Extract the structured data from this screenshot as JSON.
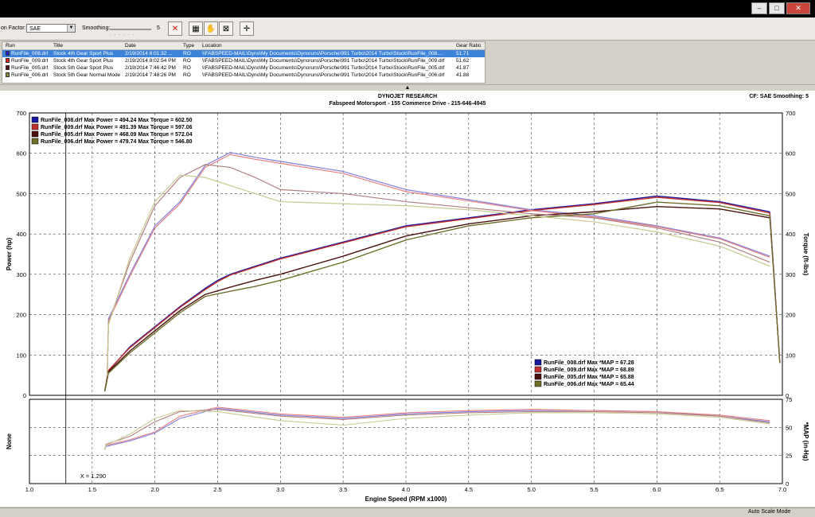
{
  "toolbar": {
    "factor_label": "on Factor:",
    "factor_value": "SAE",
    "smoothing_label": "Smoothing:",
    "smoothing_value": "5"
  },
  "table": {
    "columns": [
      "Run",
      "Title",
      "Date",
      "Type",
      "Location",
      "Gear Ratio"
    ],
    "rows": [
      {
        "run": "RunFile_008.drf",
        "title": "Stock 4th Gear Sport Plus",
        "date": "2/19/2014 8:01:32 ...",
        "type": "RO",
        "location": "\\\\FABSPEED-MAIL\\Dyno\\My Documents\\Dynoruns\\Porsche\\991 Turbo\\2014 Turbo\\Stock\\RunFile_008....",
        "gear": "51.71",
        "color": "#2020e0"
      },
      {
        "run": "RunFile_009.drf",
        "title": "Stock 4th Gear Sport Plus",
        "date": "2/19/2014 8:02:54 PM",
        "type": "RO",
        "location": "\\\\FABSPEED-MAIL\\Dyno\\My Documents\\Dynoruns\\Porsche\\991 Turbo\\2014 Turbo\\Stock\\RunFile_009.drf",
        "gear": "51.62",
        "color": "#e02020"
      },
      {
        "run": "RunFile_005.drf",
        "title": "Stock 5th Gear Sport Plus",
        "date": "2/19/2014 7:46:42 PM",
        "type": "RO",
        "location": "\\\\FABSPEED-MAIL\\Dyno\\My Documents\\Dynoruns\\Porsche\\991 Turbo\\2014 Turbo\\Stock\\RunFile_005.drf",
        "gear": "41.87",
        "color": "#5a1010"
      },
      {
        "run": "RunFile_006.drf",
        "title": "Stock 5th Gear Normal Mode",
        "date": "2/19/2014 7:48:26 PM",
        "type": "RO",
        "location": "\\\\FABSPEED-MAIL\\Dyno\\My Documents\\Dynoruns\\Porsche\\991 Turbo\\2014 Turbo\\Stock\\RunFile_006.drf",
        "gear": "41.88",
        "color": "#8a8a40"
      }
    ]
  },
  "splitter_glyph": "▲",
  "status": {
    "mode": "Auto Scale Mode"
  },
  "chart_data": {
    "type": "line",
    "header": "DYNOJET RESEARCH",
    "subtitle": "Fabspeed Motorsport - 155 Commerce Drive - 215-646-4945",
    "info_right": "CF: SAE  Smoothing: 5",
    "xlabel": "Engine Speed (RPM x1000)",
    "ylabel_left": "Power (hp)",
    "ylabel_right": "Torque (ft-lbs)",
    "ylabel_lower_left": "None",
    "ylabel_lower_right": "*MAP (in-Hg)",
    "xlim": [
      1.0,
      7.0
    ],
    "x_ticks": [
      "1.0",
      "1.5",
      "2.0",
      "2.5",
      "3.0",
      "3.5",
      "4.0",
      "4.5",
      "5.0",
      "5.5",
      "6.0",
      "6.5",
      "7.0"
    ],
    "ylim": [
      0,
      700
    ],
    "y_ticks": [
      "0",
      "100",
      "200",
      "300",
      "400",
      "500",
      "600",
      "700"
    ],
    "lower_ylim": [
      0,
      75
    ],
    "lower_y_ticks": [
      "0",
      "25",
      "50",
      "75"
    ],
    "cursor_label": "X = 1.290",
    "cursor_x": 1.29,
    "grid": true,
    "legend_top": [
      "RunFile_008.drf Max Power = 494.24 Max Torque = 602.50",
      "RunFile_009.drf Max Power = 491.39 Max Torque = 597.06",
      "RunFile_005.drf Max Power = 468.09 Max Torque = 572.04",
      "RunFile_006.drf Max Power = 479.74 Max Torque = 546.80"
    ],
    "legend_map": [
      "RunFile_008.drf Max *MAP = 67.28",
      "RunFile_009.drf Max *MAP = 68.89",
      "RunFile_005.drf Max *MAP = 65.88",
      "RunFile_006.drf Max *MAP = 65.44"
    ],
    "series": [
      {
        "name": "RunFile_008.drf",
        "color": "#1a1aa0",
        "torque_color": "#8080e0",
        "x": [
          1.6,
          1.63,
          1.8,
          2.0,
          2.2,
          2.4,
          2.5,
          2.6,
          2.8,
          3.0,
          3.5,
          4.0,
          4.5,
          5.0,
          5.5,
          6.0,
          6.5,
          6.9
        ],
        "power": [
          10,
          60,
          120,
          170,
          220,
          265,
          285,
          300,
          320,
          340,
          380,
          420,
          440,
          460,
          475,
          494,
          480,
          455
        ],
        "torque_x": [
          1.62,
          1.63,
          1.8,
          2.0,
          2.2,
          2.4,
          2.6,
          2.8,
          3.0,
          3.5,
          4.0,
          4.5,
          5.0,
          5.5,
          6.0,
          6.5,
          6.9
        ],
        "torque": [
          50,
          190,
          300,
          420,
          480,
          570,
          602,
          590,
          580,
          555,
          510,
          485,
          460,
          445,
          420,
          390,
          345
        ],
        "map_x": [
          1.6,
          1.61,
          1.8,
          2.0,
          2.2,
          2.5,
          3.0,
          3.5,
          4.0,
          4.5,
          5.0,
          5.5,
          6.0,
          6.5,
          6.9
        ],
        "map": [
          30,
          33,
          38,
          45,
          58,
          67,
          61,
          58,
          62,
          64,
          65,
          65,
          64,
          60,
          55
        ]
      },
      {
        "name": "RunFile_009.drf",
        "color": "#c03030",
        "torque_color": "#e88080",
        "x": [
          1.6,
          1.63,
          1.8,
          2.0,
          2.2,
          2.4,
          2.5,
          2.6,
          2.8,
          3.0,
          3.5,
          4.0,
          4.5,
          5.0,
          5.5,
          6.0,
          6.5,
          6.9
        ],
        "power": [
          10,
          62,
          118,
          168,
          218,
          262,
          282,
          298,
          318,
          338,
          378,
          418,
          438,
          458,
          473,
          491,
          478,
          452
        ],
        "torque_x": [
          1.62,
          1.63,
          1.8,
          2.0,
          2.2,
          2.4,
          2.6,
          2.8,
          3.0,
          3.5,
          4.0,
          4.5,
          5.0,
          5.5,
          6.0,
          6.5,
          6.9
        ],
        "torque": [
          55,
          185,
          295,
          415,
          475,
          565,
          597,
          585,
          575,
          550,
          505,
          482,
          458,
          442,
          418,
          388,
          342
        ],
        "map_x": [
          1.6,
          1.61,
          1.8,
          2.0,
          2.2,
          2.5,
          3.0,
          3.5,
          4.0,
          4.5,
          5.0,
          5.5,
          6.0,
          6.5,
          6.9
        ],
        "map": [
          30,
          34,
          39,
          46,
          60,
          68,
          62,
          59,
          63,
          65,
          66,
          65,
          64,
          61,
          56
        ]
      },
      {
        "name": "RunFile_005.drf",
        "color": "#4a1010",
        "torque_color": "#b08080",
        "x": [
          1.6,
          1.63,
          1.8,
          2.0,
          2.2,
          2.4,
          2.6,
          2.8,
          3.0,
          3.5,
          4.0,
          4.5,
          5.0,
          5.5,
          6.0,
          6.5,
          6.9
        ],
        "power": [
          10,
          58,
          110,
          160,
          210,
          250,
          268,
          285,
          300,
          345,
          395,
          425,
          445,
          455,
          468,
          462,
          440
        ],
        "torque_x": [
          1.62,
          1.63,
          1.8,
          2.0,
          2.2,
          2.4,
          2.6,
          2.8,
          3.0,
          3.5,
          4.0,
          4.5,
          5.0,
          5.5,
          6.0,
          6.5,
          6.9
        ],
        "torque": [
          50,
          180,
          330,
          470,
          540,
          572,
          565,
          540,
          510,
          500,
          480,
          465,
          450,
          440,
          415,
          380,
          330
        ],
        "map_x": [
          1.6,
          1.61,
          1.8,
          2.0,
          2.2,
          2.5,
          3.0,
          3.5,
          4.0,
          4.5,
          5.0,
          5.5,
          6.0,
          6.5,
          6.9
        ],
        "map": [
          30,
          35,
          42,
          55,
          64,
          66,
          60,
          57,
          61,
          63,
          64,
          64,
          63,
          60,
          54
        ]
      },
      {
        "name": "RunFile_006.drf",
        "color": "#6f6f2a",
        "torque_color": "#c8c890",
        "x": [
          1.6,
          1.63,
          1.8,
          2.0,
          2.2,
          2.4,
          2.6,
          2.8,
          3.0,
          3.5,
          4.0,
          4.5,
          5.0,
          5.5,
          6.0,
          6.5,
          6.9
        ],
        "power": [
          10,
          55,
          105,
          155,
          205,
          245,
          258,
          270,
          285,
          330,
          385,
          420,
          440,
          450,
          479,
          470,
          445
        ],
        "torque_x": [
          1.62,
          1.63,
          1.8,
          2.0,
          2.2,
          2.4,
          2.6,
          2.8,
          3.0,
          3.5,
          4.0,
          4.5,
          5.0,
          5.5,
          6.0,
          6.5,
          6.9
        ],
        "torque": [
          48,
          175,
          340,
          480,
          546,
          540,
          520,
          500,
          480,
          475,
          470,
          460,
          445,
          430,
          405,
          370,
          320
        ],
        "map_x": [
          1.6,
          1.61,
          1.8,
          2.0,
          2.2,
          2.5,
          3.0,
          3.5,
          4.0,
          4.5,
          5.0,
          5.5,
          6.0,
          6.5,
          6.9
        ],
        "map": [
          30,
          34,
          44,
          58,
          65,
          64,
          56,
          52,
          58,
          61,
          63,
          63,
          62,
          59,
          53
        ]
      }
    ]
  }
}
